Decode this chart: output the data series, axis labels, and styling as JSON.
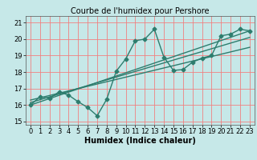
{
  "title": "Courbe de l'humidex pour Pershore",
  "xlabel": "Humidex (Indice chaleur)",
  "ylabel": "",
  "xlim": [
    -0.5,
    23.5
  ],
  "ylim": [
    14.8,
    21.4
  ],
  "xticks": [
    0,
    1,
    2,
    3,
    4,
    5,
    6,
    7,
    8,
    9,
    10,
    11,
    12,
    13,
    14,
    15,
    16,
    17,
    18,
    19,
    20,
    21,
    22,
    23
  ],
  "yticks": [
    15,
    16,
    17,
    18,
    19,
    20,
    21
  ],
  "bg_color": "#c6e8e8",
  "grid_color": "#f08080",
  "line_color": "#2d7d6e",
  "zigzag_x": [
    0,
    1,
    2,
    3,
    4,
    5,
    6,
    7,
    8,
    9,
    10,
    11,
    12,
    13,
    14,
    15,
    16,
    17,
    18,
    19,
    20,
    21,
    22,
    23
  ],
  "zigzag_y": [
    16.0,
    16.5,
    16.4,
    16.8,
    16.6,
    16.2,
    15.85,
    15.35,
    16.35,
    18.05,
    18.8,
    19.9,
    20.0,
    20.6,
    18.9,
    18.1,
    18.15,
    18.6,
    18.85,
    19.0,
    20.2,
    20.3,
    20.6,
    20.5
  ],
  "line1_x": [
    0,
    23
  ],
  "line1_y": [
    16.0,
    20.5
  ],
  "line2_x": [
    0,
    23
  ],
  "line2_y": [
    16.15,
    20.1
  ],
  "line3_x": [
    0,
    23
  ],
  "line3_y": [
    16.3,
    19.5
  ],
  "marker_size": 2.5,
  "line_width": 1.0,
  "font_size_label": 7,
  "font_size_tick": 6,
  "title_fontsize": 7
}
